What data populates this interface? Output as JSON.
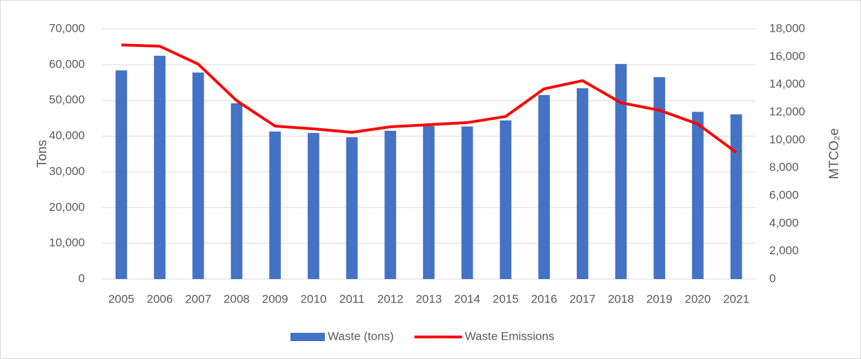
{
  "chart_data": {
    "type": "bar-line",
    "categories": [
      "2005",
      "2006",
      "2007",
      "2008",
      "2009",
      "2010",
      "2011",
      "2012",
      "2013",
      "2014",
      "2015",
      "2016",
      "2017",
      "2018",
      "2019",
      "2020",
      "2021"
    ],
    "series": [
      {
        "name": "Waste (tons)",
        "type": "bar",
        "color": "#4472c4",
        "axis": "y",
        "values": [
          58400,
          62500,
          57800,
          49200,
          41300,
          40900,
          39700,
          41500,
          42800,
          42700,
          44400,
          51500,
          53400,
          60200,
          56500,
          46800,
          46100
        ]
      },
      {
        "name": "Waste Emissions",
        "type": "line",
        "color": "#ff0000",
        "axis": "y2",
        "values": [
          16850,
          16760,
          15470,
          12840,
          11010,
          10810,
          10560,
          10960,
          11110,
          11260,
          11700,
          13690,
          14280,
          12690,
          12150,
          11160,
          9120
        ]
      }
    ],
    "ylabel": "Tons",
    "y2label": "MTCO₂e",
    "ylim": [
      0,
      70000
    ],
    "yticks": [
      0,
      {
        "value": 10000,
        "label": "10,000"
      },
      {
        "value": 20000,
        "label": "20,000"
      },
      {
        "value": 30000,
        "label": "30,000"
      },
      {
        "value": 40000,
        "label": "40,000"
      },
      {
        "value": 50000,
        "label": "50,000"
      },
      {
        "value": 60000,
        "label": "60,000"
      },
      {
        "value": 70000,
        "label": "70,000"
      }
    ],
    "y2lim": [
      0,
      18000
    ],
    "y2ticks": [
      0,
      {
        "value": 2000,
        "label": "2,000"
      },
      {
        "value": 4000,
        "label": "4,000"
      },
      {
        "value": 6000,
        "label": "6,000"
      },
      {
        "value": 8000,
        "label": "8,000"
      },
      {
        "value": 10000,
        "label": "10,000"
      },
      {
        "value": 12000,
        "label": "12,000"
      },
      {
        "value": 14000,
        "label": "14,000"
      },
      {
        "value": 16000,
        "label": "16,000"
      },
      {
        "value": 18000,
        "label": "18,000"
      }
    ],
    "grid": true,
    "legend": "bottom"
  }
}
